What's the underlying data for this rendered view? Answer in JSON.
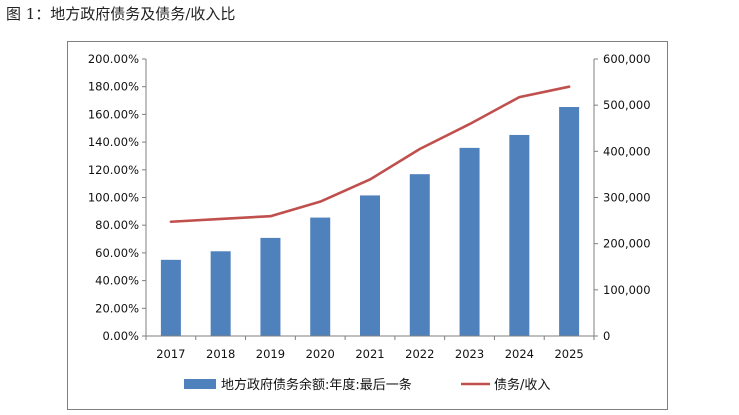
{
  "figure": {
    "title": "图 1：地方政府债务及债务/收入比"
  },
  "chart_data": {
    "type": "bar",
    "categories": [
      "2017",
      "2018",
      "2019",
      "2020",
      "2021",
      "2022",
      "2023",
      "2024",
      "2025"
    ],
    "series": [
      {
        "name": "地方政府债务余额:年度:最后一条",
        "kind": "bar",
        "axis": "right",
        "color": "#4f81bd",
        "values": [
          165000,
          183500,
          212500,
          256500,
          304500,
          350500,
          407500,
          435500,
          496000
        ]
      },
      {
        "name": "债务/收入",
        "kind": "line",
        "axis": "left",
        "color": "#c0504d",
        "values": [
          82.5,
          84.5,
          86.5,
          97.0,
          113.0,
          135.0,
          153.0,
          172.5,
          180.0
        ]
      }
    ],
    "y_left": {
      "min": 0,
      "max": 200,
      "step": 20,
      "tick_labels": [
        "0.00%",
        "20.00%",
        "40.00%",
        "60.00%",
        "80.00%",
        "100.00%",
        "120.00%",
        "140.00%",
        "160.00%",
        "180.00%",
        "200.00%"
      ]
    },
    "y_right": {
      "min": 0,
      "max": 600000,
      "step": 100000,
      "tick_labels": [
        "0",
        "100,000",
        "200,000",
        "300,000",
        "400,000",
        "500,000",
        "600,000"
      ]
    },
    "grid": false,
    "legend": "bottom"
  }
}
